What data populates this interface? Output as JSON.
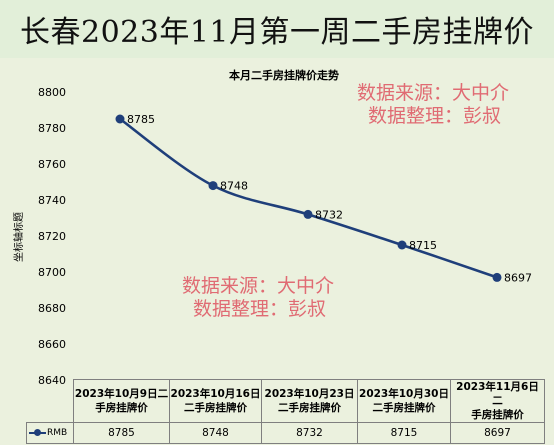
{
  "banner": {
    "title": "长春2023年11月第一周二手房挂牌价"
  },
  "watermarks": [
    {
      "line1": "数据来源：大中介",
      "line2": "数据整理：彭叔"
    },
    {
      "line1": "数据来源：大中介",
      "line2": "数据整理：彭叔"
    }
  ],
  "chart_data": {
    "type": "line",
    "title": "本月二手房挂牌价走势",
    "ylabel": "坐标轴标题",
    "ylim": [
      8640,
      8800
    ],
    "yticks": [
      8640,
      8660,
      8680,
      8700,
      8720,
      8740,
      8760,
      8780,
      8800
    ],
    "categories": [
      "2023年10月9日二手房挂牌价",
      "2023年10月16日二手房挂牌价",
      "2023年10月23日二手房挂牌价",
      "2023年10月30日二手房挂牌价",
      "2023年11月6日二手房挂牌价"
    ],
    "category_lines": [
      [
        "2023年10月9日二",
        "手房挂牌价"
      ],
      [
        "2023年10月16日",
        "二手房挂牌价"
      ],
      [
        "2023年10月23日",
        "二手房挂牌价"
      ],
      [
        "2023年10月30日",
        "二手房挂牌价"
      ],
      [
        "2023年11月6日二",
        "手房挂牌价"
      ]
    ],
    "series": [
      {
        "name": "RMB",
        "values": [
          8785,
          8748,
          8732,
          8715,
          8697
        ],
        "color": "#1f3f7a"
      }
    ],
    "data_labels": [
      "8785",
      "8748",
      "8732",
      "8715",
      "8697"
    ],
    "legend": "data-table",
    "grid": false
  }
}
